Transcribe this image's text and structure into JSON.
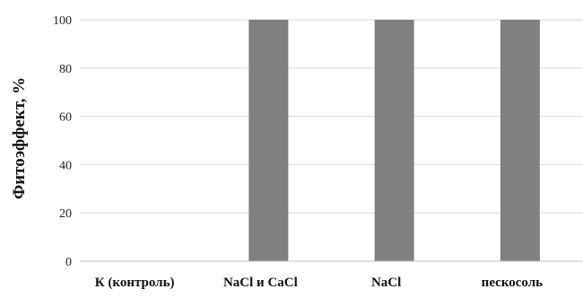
{
  "chart_data": {
    "type": "bar",
    "title": "",
    "xlabel": "",
    "ylabel": "Фитоэффект, %",
    "categories": [
      "К  (контроль)",
      "NaCl и CaCl",
      "NaCl",
      "пескосоль"
    ],
    "values": [
      0,
      100,
      100,
      100
    ],
    "ylim": [
      0,
      100
    ],
    "yticks": [
      "0",
      "20",
      "40",
      "60",
      "80",
      "100"
    ],
    "grid": true,
    "legend": "none",
    "colors": {
      "bar": "#808080",
      "grid": "#d9d9d9",
      "axis": "#bfbfbf"
    }
  }
}
